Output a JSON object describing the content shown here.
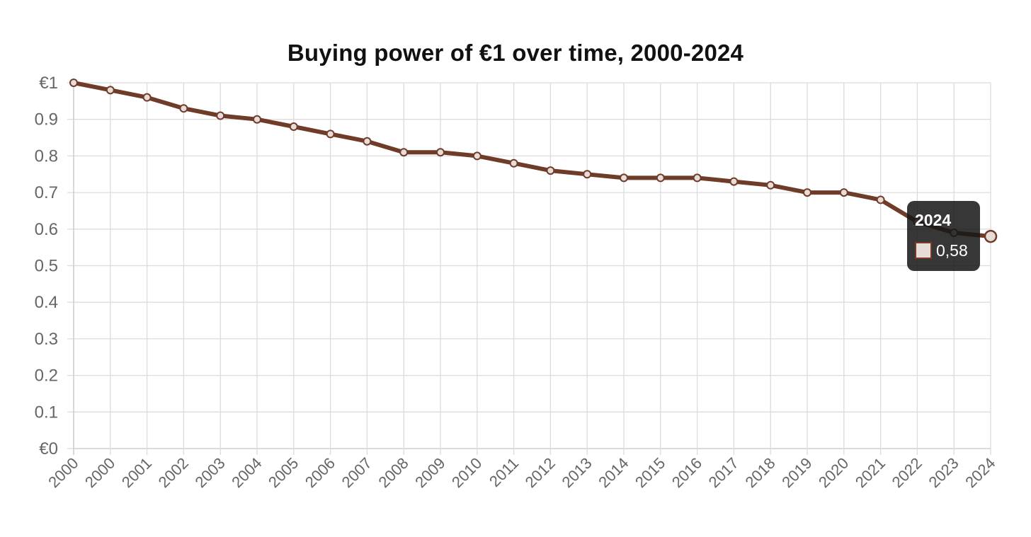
{
  "chart_data": {
    "type": "line",
    "title": "Buying power of €1 over time, 2000-2024",
    "xlabel": "",
    "ylabel": "",
    "categories": [
      "2000",
      "2000",
      "2001",
      "2002",
      "2003",
      "2004",
      "2005",
      "2006",
      "2007",
      "2008",
      "2009",
      "2010",
      "2011",
      "2012",
      "2013",
      "2014",
      "2015",
      "2016",
      "2017",
      "2018",
      "2019",
      "2020",
      "2021",
      "2022",
      "2023",
      "2024"
    ],
    "series": [
      {
        "name": "Buying power of €1",
        "values": [
          1.0,
          0.98,
          0.96,
          0.93,
          0.91,
          0.9,
          0.88,
          0.86,
          0.84,
          0.81,
          0.81,
          0.8,
          0.78,
          0.76,
          0.75,
          0.74,
          0.74,
          0.74,
          0.73,
          0.72,
          0.7,
          0.7,
          0.68,
          0.62,
          0.59,
          0.58
        ],
        "color": "#6e3c28"
      }
    ],
    "ylim": [
      0,
      1
    ],
    "y_ticks": [
      {
        "value": 0,
        "label": "€0"
      },
      {
        "value": 0.1,
        "label": "0.1"
      },
      {
        "value": 0.2,
        "label": "0.2"
      },
      {
        "value": 0.3,
        "label": "0.3"
      },
      {
        "value": 0.4,
        "label": "0.4"
      },
      {
        "value": 0.5,
        "label": "0.5"
      },
      {
        "value": 0.6,
        "label": "0.6"
      },
      {
        "value": 0.7,
        "label": "0.7"
      },
      {
        "value": 0.8,
        "label": "0.8"
      },
      {
        "value": 0.9,
        "label": "0.9"
      },
      {
        "value": 1,
        "label": "€1"
      }
    ],
    "grid": true,
    "tooltip": {
      "title": "2024",
      "value_label": "0,58",
      "index": 25
    }
  },
  "colors": {
    "line": "#6e3c28",
    "point_fill": "#e8dcd8",
    "point_stroke": "#6e3c28",
    "grid": "#dcdcdc"
  }
}
